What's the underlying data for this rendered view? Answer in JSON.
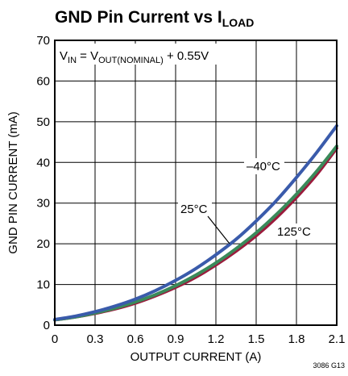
{
  "chart_data": {
    "type": "line",
    "title": "GND Pin Current vs I",
    "title_subscript": "LOAD",
    "xlabel": "OUTPUT CURRENT (A)",
    "ylabel": "GND PIN CURRENT (mA)",
    "xlim": [
      0,
      2.1
    ],
    "ylim": [
      0,
      70
    ],
    "x_ticks": [
      "0",
      "0.3",
      "0.6",
      "0.9",
      "1.2",
      "1.5",
      "1.8",
      "2.1"
    ],
    "y_ticks": [
      "0",
      "10",
      "20",
      "30",
      "40",
      "50",
      "60",
      "70"
    ],
    "grid": true,
    "condition": {
      "prefix": "V",
      "prefix_sub": "IN",
      "middle": " = V",
      "middle_sub": "OUT(NOMINAL)",
      "suffix": " + 0.55V"
    },
    "series": [
      {
        "name": "–40°C",
        "color": "#3a5bab",
        "x": [
          0,
          0.15,
          0.3,
          0.45,
          0.6,
          0.75,
          0.9,
          1.05,
          1.2,
          1.35,
          1.5,
          1.65,
          1.8,
          1.95,
          2.1
        ],
        "y": [
          1.4,
          2.2,
          3.3,
          4.7,
          6.4,
          8.5,
          11.0,
          13.9,
          17.3,
          21.1,
          25.6,
          30.6,
          36.3,
          42.4,
          49.0
        ]
      },
      {
        "name": "25°C",
        "color": "#3a8a5a",
        "x": [
          0,
          0.15,
          0.3,
          0.45,
          0.6,
          0.75,
          0.9,
          1.05,
          1.2,
          1.35,
          1.5,
          1.65,
          1.8,
          1.95,
          2.1
        ],
        "y": [
          1.3,
          2.0,
          3.0,
          4.2,
          5.7,
          7.5,
          9.7,
          12.3,
          15.3,
          18.8,
          22.7,
          27.2,
          32.2,
          37.8,
          44.0
        ]
      },
      {
        "name": "125°C",
        "color": "#9b1b3c",
        "x": [
          0,
          0.15,
          0.3,
          0.45,
          0.6,
          0.75,
          0.9,
          1.05,
          1.2,
          1.35,
          1.5,
          1.65,
          1.8,
          1.95,
          2.1
        ],
        "y": [
          1.3,
          2.0,
          2.9,
          4.0,
          5.4,
          7.2,
          9.3,
          11.8,
          14.8,
          18.2,
          22.0,
          26.4,
          31.4,
          37.0,
          43.5
        ]
      }
    ],
    "annotations": [
      "–40°C",
      "25°C",
      "125°C"
    ],
    "figure_id": "3086 G13"
  }
}
